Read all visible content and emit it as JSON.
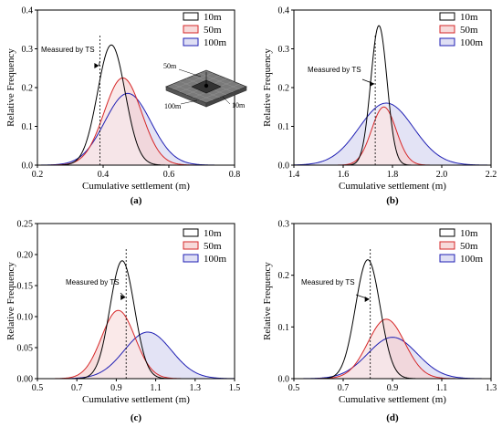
{
  "chart_data": [
    {
      "panel_label": "(a)",
      "type": "area",
      "xlabel": "Cumulative settlement (m)",
      "ylabel": "Relative Frequency",
      "xlim": [
        0.2,
        0.8
      ],
      "ylim": [
        0,
        0.4
      ],
      "xticks": [
        "0.2",
        "0.4",
        "0.6",
        "0.8"
      ],
      "yticks": [
        "0.0",
        "0.1",
        "0.2",
        "0.3",
        "0.4"
      ],
      "legend": "top-right",
      "measured": {
        "label": "Measured by TS",
        "x": 0.39
      },
      "inset": {
        "labels": [
          "50m",
          "100m",
          "10m"
        ]
      },
      "series": [
        {
          "name": "10m",
          "mean": 0.425,
          "sd": 0.042,
          "peak": 0.31,
          "color": "#000000",
          "fill": "#ffffff"
        },
        {
          "name": "50m",
          "mean": 0.46,
          "sd": 0.057,
          "peak": 0.225,
          "color": "#d62728",
          "fill": "#f6d3d3"
        },
        {
          "name": "100m",
          "mean": 0.475,
          "sd": 0.07,
          "peak": 0.185,
          "color": "#1f1fb4",
          "fill": "#d9d9f2"
        }
      ]
    },
    {
      "panel_label": "(b)",
      "type": "area",
      "xlabel": "Cumulative settlement (m)",
      "ylabel": "Relative Frequency",
      "xlim": [
        1.4,
        2.2
      ],
      "ylim": [
        0,
        0.4
      ],
      "xticks": [
        "1.4",
        "1.6",
        "1.8",
        "2.0",
        "2.2"
      ],
      "yticks": [
        "0.0",
        "0.1",
        "0.2",
        "0.3",
        "0.4"
      ],
      "legend": "top-right",
      "measured": {
        "label": "Measured by TS",
        "x": 1.73
      },
      "series": [
        {
          "name": "10m",
          "mean": 1.745,
          "sd": 0.033,
          "peak": 0.36,
          "color": "#000000",
          "fill": "#ffffff"
        },
        {
          "name": "50m",
          "mean": 1.765,
          "sd": 0.05,
          "peak": 0.15,
          "color": "#d62728",
          "fill": "#f6d3d3"
        },
        {
          "name": "100m",
          "mean": 1.775,
          "sd": 0.11,
          "peak": 0.16,
          "color": "#1f1fb4",
          "fill": "#d9d9f2"
        }
      ]
    },
    {
      "panel_label": "(c)",
      "type": "area",
      "xlabel": "Cumulative settlement (m)",
      "ylabel": "Relative Frequency",
      "xlim": [
        0.5,
        1.5
      ],
      "ylim": [
        0,
        0.25
      ],
      "xticks": [
        "0.5",
        "0.7",
        "0.9",
        "1.1",
        "1.3",
        "1.5"
      ],
      "yticks": [
        "0.00",
        "0.05",
        "0.10",
        "0.15",
        "0.20",
        "0.25"
      ],
      "legend": "top-right",
      "measured": {
        "label": "Measured by TS",
        "x": 0.95
      },
      "series": [
        {
          "name": "10m",
          "mean": 0.93,
          "sd": 0.062,
          "peak": 0.19,
          "color": "#000000",
          "fill": "#ffffff"
        },
        {
          "name": "50m",
          "mean": 0.91,
          "sd": 0.085,
          "peak": 0.11,
          "color": "#d62728",
          "fill": "#f6d3d3"
        },
        {
          "name": "100m",
          "mean": 1.06,
          "sd": 0.12,
          "peak": 0.075,
          "color": "#1f1fb4",
          "fill": "#d9d9f2"
        }
      ]
    },
    {
      "panel_label": "(d)",
      "type": "area",
      "xlabel": "Cumulative settlement (m)",
      "ylabel": "Relative Frequency",
      "xlim": [
        0.5,
        1.3
      ],
      "ylim": [
        0,
        0.3
      ],
      "xticks": [
        "0.5",
        "0.7",
        "0.9",
        "1.1",
        "1.3"
      ],
      "yticks": [
        "0.0",
        "0.1",
        "0.2",
        "0.3"
      ],
      "legend": "top-right",
      "measured": {
        "label": "Measured by TS",
        "x": 0.81
      },
      "series": [
        {
          "name": "10m",
          "mean": 0.8,
          "sd": 0.05,
          "peak": 0.23,
          "color": "#000000",
          "fill": "#ffffff"
        },
        {
          "name": "50m",
          "mean": 0.875,
          "sd": 0.075,
          "peak": 0.115,
          "color": "#d62728",
          "fill": "#f6d3d3"
        },
        {
          "name": "100m",
          "mean": 0.9,
          "sd": 0.1,
          "peak": 0.08,
          "color": "#1f1fb4",
          "fill": "#d9d9f2"
        }
      ]
    }
  ]
}
